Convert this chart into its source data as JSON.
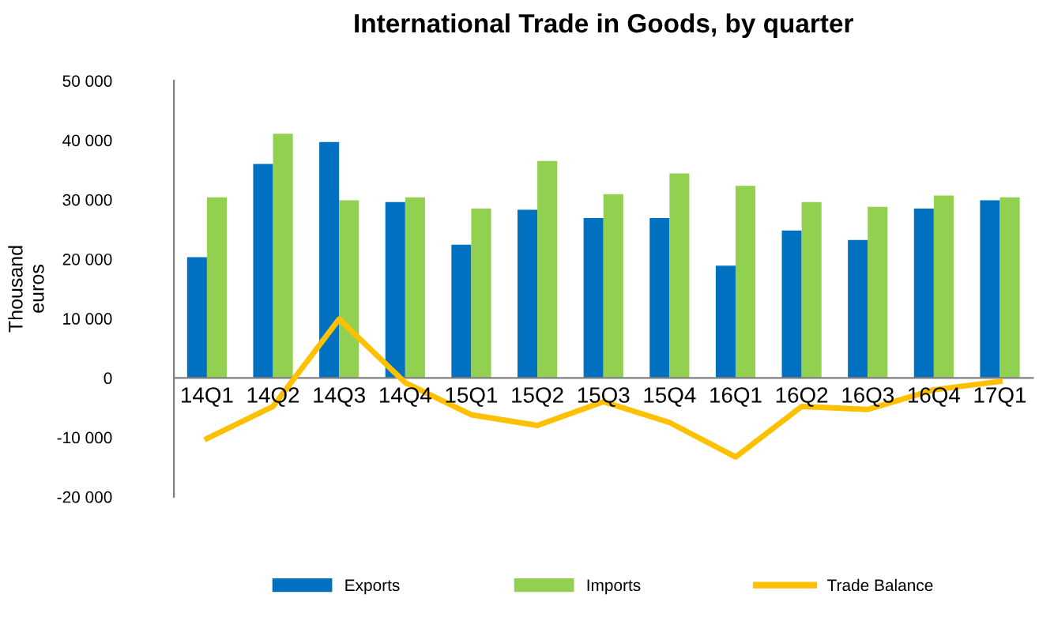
{
  "chart_data": {
    "type": "bar",
    "title": "International Trade in Goods, by quarter",
    "ylabel": "Thousand\neuros",
    "categories": [
      "14Q1",
      "14Q2",
      "14Q3",
      "14Q4",
      "15Q1",
      "15Q2",
      "15Q3",
      "15Q4",
      "16Q1",
      "16Q2",
      "16Q3",
      "16Q4",
      "17Q1"
    ],
    "series": [
      {
        "name": "Exports",
        "color": "#0070c0",
        "values": [
          20300,
          36000,
          39700,
          29600,
          22400,
          28300,
          26900,
          26900,
          18900,
          24800,
          23200,
          28500,
          29900
        ]
      },
      {
        "name": "Imports",
        "color": "#92d050",
        "values": [
          30400,
          41100,
          29900,
          30400,
          28500,
          36500,
          30900,
          34400,
          32300,
          29600,
          28800,
          30700,
          30400
        ]
      },
      {
        "name": "Trade Balance",
        "type": "line",
        "color": "#ffc000",
        "values": [
          -10200,
          -4800,
          9900,
          -800,
          -6200,
          -8000,
          -4000,
          -7500,
          -13300,
          -4800,
          -5300,
          -2000,
          -600
        ]
      }
    ],
    "ylim": [
      -20000,
      50000
    ],
    "yticks": [
      {
        "value": -20000,
        "label": "-20 000"
      },
      {
        "value": -10000,
        "label": "-10 000"
      },
      0,
      {
        "value": 10000,
        "label": "10 000"
      },
      {
        "value": 20000,
        "label": "20 000"
      },
      {
        "value": 30000,
        "label": "30 000"
      },
      {
        "value": 40000,
        "label": "40 000"
      },
      {
        "value": 50000,
        "label": "50 000"
      }
    ],
    "grid": false,
    "legend": "bottom"
  }
}
